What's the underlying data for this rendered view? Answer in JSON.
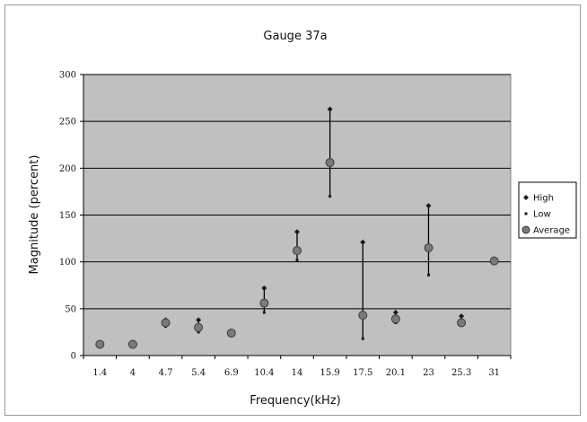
{
  "chart_data": {
    "type": "scatter",
    "title": "Gauge 37a",
    "xlabel": "Frequency(kHz)",
    "ylabel": "Magnitude (percent)",
    "categories": [
      "1.4",
      "4",
      "4.7",
      "5.4",
      "6.9",
      "10.4",
      "14",
      "15.9",
      "17.5",
      "20.1",
      "23",
      "25.3",
      "31"
    ],
    "ylim": [
      0,
      300
    ],
    "yticks": [
      0,
      50,
      100,
      150,
      200,
      250,
      300
    ],
    "grid": true,
    "legend_position": "right",
    "series": [
      {
        "name": "High",
        "marker": "diamond",
        "color": "#1a1a1a",
        "values": [
          null,
          null,
          38,
          38,
          null,
          72,
          132,
          263,
          121,
          46,
          160,
          42,
          null
        ]
      },
      {
        "name": "Low",
        "marker": "small-dot",
        "color": "#1a1a1a",
        "values": [
          null,
          null,
          31,
          25,
          null,
          46,
          102,
          170,
          18,
          35,
          86,
          33,
          null
        ]
      },
      {
        "name": "Average",
        "marker": "circle",
        "color": "#7a7a7a",
        "values": [
          12,
          12,
          35,
          30,
          24,
          56,
          112,
          206,
          43,
          39,
          115,
          35,
          101
        ]
      }
    ],
    "colors": {
      "plot_bg": "#c0c0c0",
      "gridline": "#000000",
      "average_fill": "#7a7a7a"
    }
  }
}
